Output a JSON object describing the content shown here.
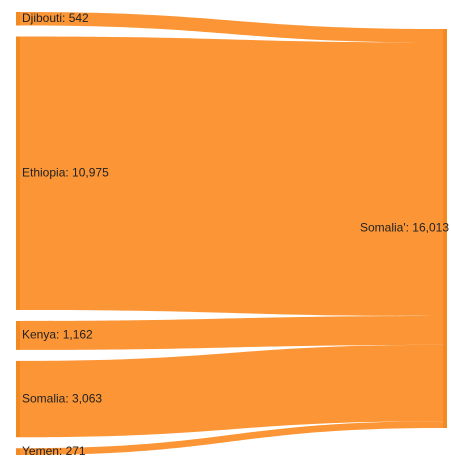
{
  "chart_data": {
    "type": "sankey",
    "sources": [
      {
        "label": "Djibouti: 542",
        "value": 542
      },
      {
        "label": "Ethiopia: 10,975",
        "value": 10975
      },
      {
        "label": "Kenya: 1,162",
        "value": 1162
      },
      {
        "label": "Somalia: 3,063",
        "value": 3063
      },
      {
        "label": "Yemen: 271",
        "value": 271
      }
    ],
    "target": {
      "label": "Somalia': 16,013",
      "value": 16013
    },
    "node_color": "#f28a21",
    "link_color": "#fb9535"
  }
}
